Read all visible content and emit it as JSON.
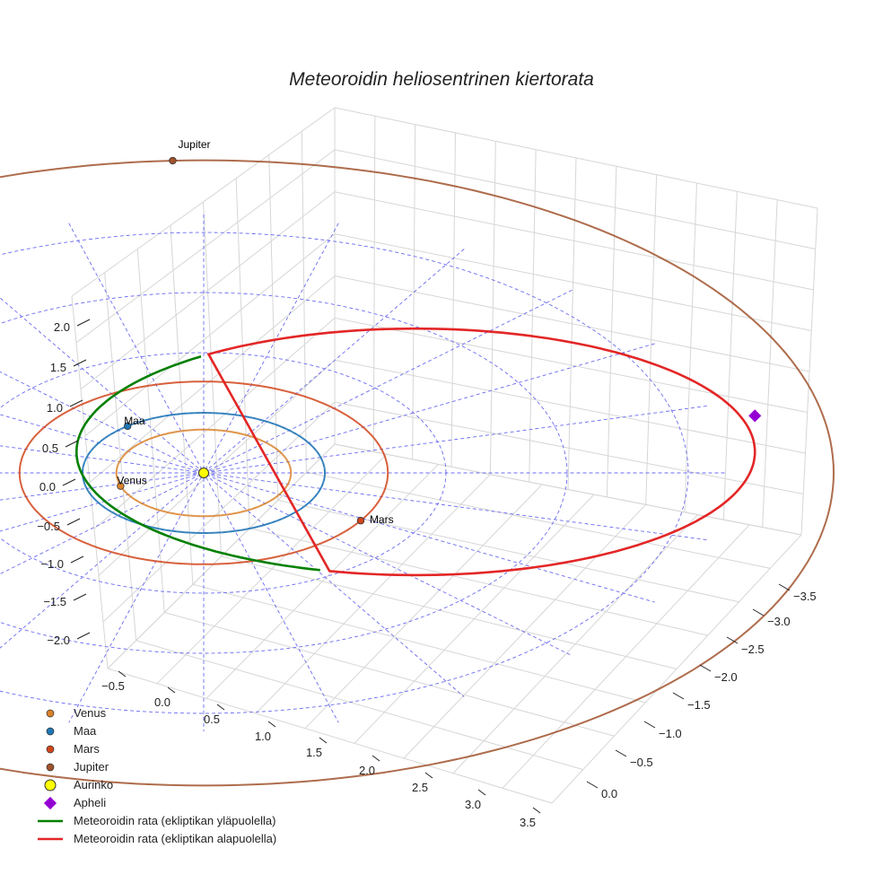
{
  "chart_data": {
    "type": "scatter3d",
    "title": "Meteoroidin heliosentrinen kiertorata",
    "axes": {
      "x_ticks": [
        "−0.5",
        "0.0",
        "0.5",
        "1.0",
        "1.5",
        "2.0",
        "2.5",
        "3.0",
        "3.5"
      ],
      "y_ticks": [
        "−3.5",
        "−3.0",
        "−2.5",
        "−2.0",
        "−1.5",
        "−1.0",
        "−0.5",
        "0.0"
      ],
      "z_ticks": [
        "2.0",
        "1.5",
        "1.0",
        "0.5",
        "0.0",
        "−0.5",
        "−1.0",
        "−1.5",
        "−2.0"
      ],
      "grid": true
    },
    "orbits": {
      "venus_au": 0.72,
      "earth_au": 1.0,
      "mars_au": 1.52,
      "jupiter_au": 5.2
    },
    "bodies": [
      {
        "name": "Venus",
        "label": "Venus",
        "color": "#d9822b"
      },
      {
        "name": "Maa",
        "label": "Maa",
        "color": "#1f77b4"
      },
      {
        "name": "Mars",
        "label": "Mars",
        "color": "#d1451b"
      },
      {
        "name": "Jupiter",
        "label": "Jupiter",
        "color": "#a0522d"
      }
    ],
    "sun": {
      "name": "Aurinko",
      "color": "#ffff00"
    },
    "aphelion": {
      "name": "Apheli",
      "color": "#9400d3"
    },
    "meteoroid": {
      "above_name": "Meteoroidin rata (ekliptikan yläpuolella)",
      "above_color": "#008000",
      "below_name": "Meteoroidin rata (ekliptikan alapuolella)",
      "below_color": "#e32626"
    },
    "legend": {
      "position": "bottom-left",
      "entries": [
        "Venus",
        "Maa",
        "Mars",
        "Jupiter",
        "Aurinko",
        "Apheli",
        "Meteoroidin rata (ekliptikan yläpuolella)",
        "Meteoroidin rata (ekliptikan alapuolella)"
      ]
    }
  }
}
